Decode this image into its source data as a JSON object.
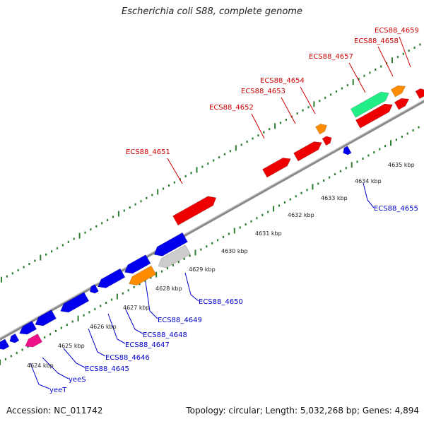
{
  "title": "Escherichia coli S88, complete genome",
  "accession": "Accession: NC_011742",
  "summary": "Topology: circular; Length: 5,032,268 bp; Genes: 4,894",
  "colors": {
    "forward_label": "#cc0000",
    "reverse_label": "#0000cc",
    "backbone": "#8a8a8a",
    "ticks": "#2e7d32"
  },
  "scale_labels": [
    "4624 kbp",
    "4625 kbp",
    "4626 kbp",
    "4627 kbp",
    "4628 kbp",
    "4629 kbp",
    "4630 kbp",
    "4631 kbp",
    "4632 kbp",
    "4633 kbp",
    "4634 kbp",
    "4635 kbp"
  ],
  "forward_genes": [
    {
      "name": "ECS88_4651",
      "color": "#ee0000"
    },
    {
      "name": "ECS88_4652",
      "color": "#ee0000"
    },
    {
      "name": "ECS88_4653",
      "color": "#ee0000"
    },
    {
      "name": "ECS88_4654",
      "color": "#ff8c00"
    },
    {
      "name": "ECS88_4657",
      "color": "#22ee88"
    },
    {
      "name": "ECS88_4658",
      "color": "#ff8c00"
    },
    {
      "name": "ECS88_4659",
      "color": "#ee0000"
    }
  ],
  "reverse_genes": [
    {
      "name": "yeeT",
      "color": "#0000ee"
    },
    {
      "name": "yeeS",
      "color": "#0000ee"
    },
    {
      "name": "ECS88_4645",
      "color": "#ee1188"
    },
    {
      "name": "ECS88_4646",
      "color": "#0000ee"
    },
    {
      "name": "ECS88_4647",
      "color": "#0000ee"
    },
    {
      "name": "ECS88_4648",
      "color": "#0000ee"
    },
    {
      "name": "ECS88_4649",
      "color": "#ff8c00"
    },
    {
      "name": "ECS88_4650",
      "color": "#cccccc"
    },
    {
      "name": "ECS88_4655",
      "color": "#0000ee"
    }
  ]
}
